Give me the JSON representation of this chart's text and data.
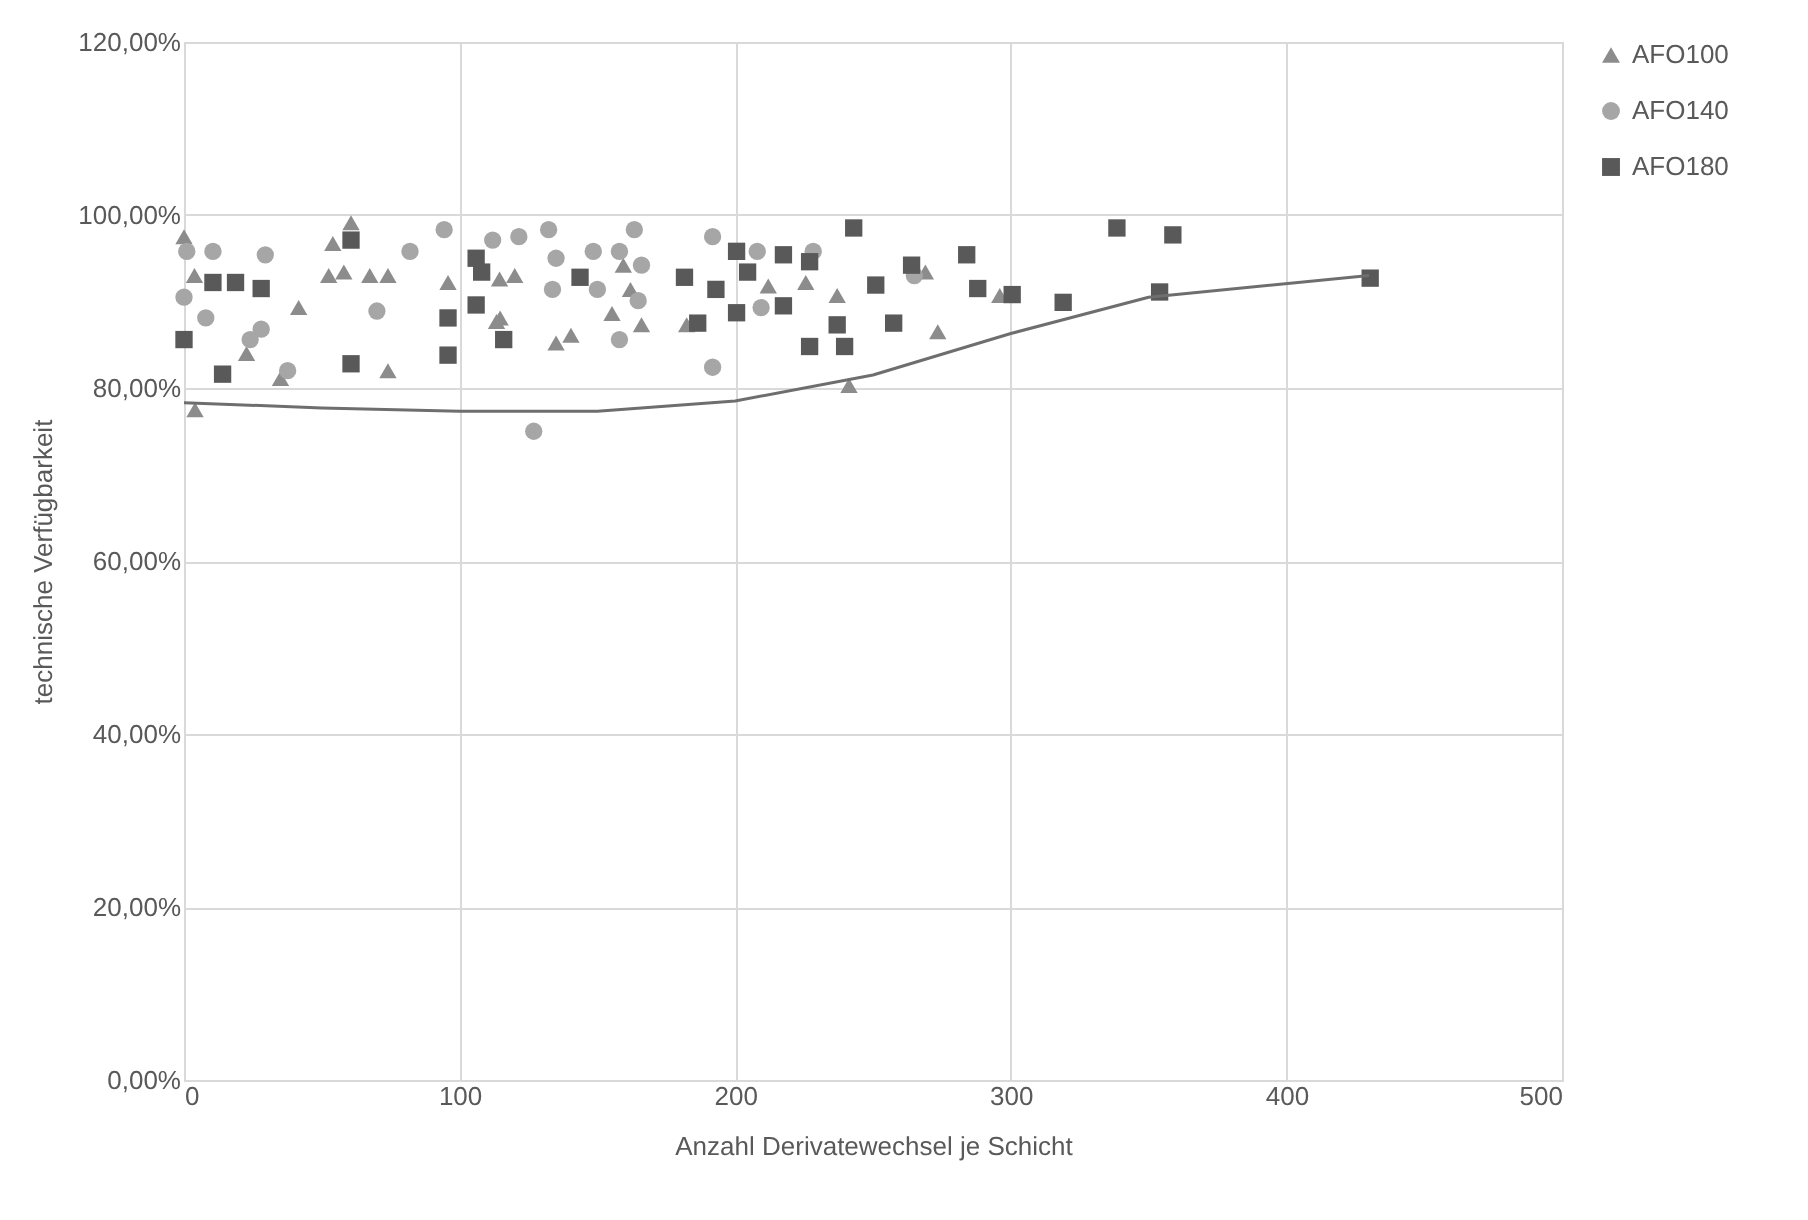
{
  "chart_data": {
    "type": "scatter",
    "xlabel": "Anzahl Derivatewechsel je Schicht",
    "ylabel": "technische Verfügbarkeit",
    "xlim": [
      0,
      500
    ],
    "xticks": [
      0,
      100,
      200,
      300,
      400,
      500
    ],
    "ylim": [
      0,
      120
    ],
    "yticks": [
      {
        "value": 0,
        "label": "0,00%"
      },
      {
        "value": 20,
        "label": "20,00%"
      },
      {
        "value": 40,
        "label": "40,00%"
      },
      {
        "value": 60,
        "label": "60,00%"
      },
      {
        "value": 80,
        "label": "80,00%"
      },
      {
        "value": 100,
        "label": "100,00%"
      },
      {
        "value": 120,
        "label": "120,00%"
      }
    ],
    "grid": true,
    "legend": "right",
    "series": [
      {
        "name": "AFO100",
        "color": "#8c8c8c",
        "marker": "triangle",
        "x": [
          0,
          3.8,
          4,
          41.6,
          22.7,
          35,
          54,
          60.6,
          52.5,
          58,
          67.4,
          74,
          74,
          95.8,
          113.4,
          114.5,
          120,
          114.7,
          135,
          140.4,
          155.3,
          162,
          166,
          159.4,
          182.4,
          212,
          225.6,
          237,
          269,
          273.5,
          241.3,
          296
        ],
        "values": [
          97.5,
          93,
          77.5,
          89.3,
          84,
          81.1,
          96.7,
          99.1,
          93,
          93.4,
          93,
          93,
          82,
          92.2,
          87.7,
          92.6,
          93,
          88.1,
          85.2,
          86.1,
          88.6,
          91.4,
          87.3,
          94.2,
          87.3,
          91.8,
          92.2,
          90.7,
          93.4,
          86.5,
          80.3,
          90.7
        ]
      },
      {
        "name": "AFO140",
        "color": "#a6a6a6",
        "marker": "circle",
        "x": [
          1,
          10.5,
          29.5,
          0,
          7.9,
          28,
          24,
          37.6,
          94.4,
          82,
          70,
          112,
          121.5,
          132.3,
          163.4,
          135,
          148.5,
          158,
          133.7,
          150,
          164.8,
          158,
          191.8,
          208,
          209.4,
          191.8,
          126.9,
          166,
          228.3,
          265
        ],
        "values": [
          95.8,
          95.8,
          95.4,
          90.5,
          88.1,
          86.8,
          85.6,
          82,
          98.3,
          95.8,
          88.9,
          97.1,
          97.5,
          98.3,
          98.3,
          95,
          95.8,
          95.8,
          91.4,
          91.4,
          90.1,
          85.6,
          97.5,
          95.8,
          89.3,
          82.4,
          75.0,
          94.2,
          95.8,
          93
        ]
      },
      {
        "name": "AFO180",
        "color": "#595959",
        "marker": "square",
        "x": [
          0,
          14,
          10.5,
          18.7,
          28,
          60.6,
          60.6,
          95.8,
          95.8,
          106,
          108,
          106,
          116,
          143.7,
          181.6,
          193,
          186.4,
          200.5,
          204.5,
          200.5,
          217.5,
          227,
          217.5,
          227,
          243,
          264,
          251,
          284,
          288,
          300.5,
          319,
          237,
          257.5,
          239.7,
          338.5,
          358.8,
          354,
          430.4
        ],
        "values": [
          85.6,
          81.6,
          92.2,
          92.2,
          91.5,
          97.1,
          82.8,
          88.1,
          83.8,
          95,
          93.4,
          89.6,
          85.6,
          92.8,
          92.8,
          91.4,
          87.5,
          95.8,
          93.4,
          88.7,
          95.4,
          94.6,
          89.5,
          84.8,
          98.5,
          94.2,
          91.9,
          95.4,
          91.5,
          90.8,
          89.9,
          87.3,
          87.5,
          84.8,
          98.5,
          97.7,
          91.1,
          92.7
        ]
      },
      {
        "type": "line",
        "color": "#6e6e6e",
        "line_style": "solid",
        "marker": "none",
        "x": [
          0,
          50,
          100,
          150,
          200,
          250,
          300,
          350,
          430
        ],
        "values": [
          78.3,
          77.7,
          77.3,
          77.3,
          78.5,
          81.5,
          86.3,
          90.5,
          93.0
        ]
      }
    ]
  }
}
